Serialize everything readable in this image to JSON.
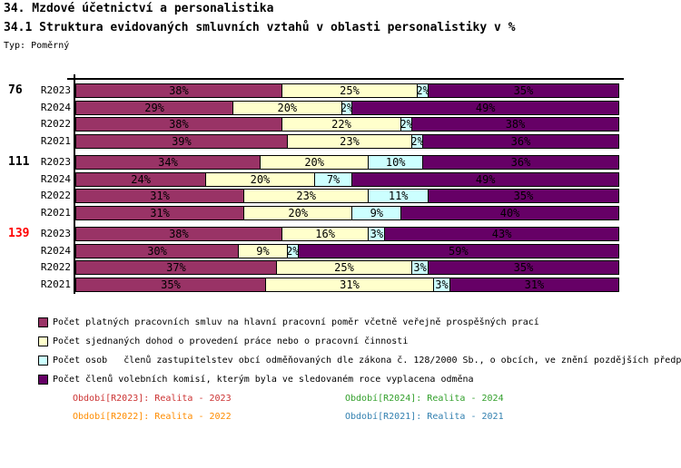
{
  "header": {
    "title": "34. Mzdové účetnictví a personalistika",
    "subtitle": "34.1 Struktura evidovaných smluvních vztahů v oblasti personalistiky v %",
    "type_label": "Typ: Poměrný"
  },
  "chart_data": {
    "type": "bar",
    "stacked": true,
    "orientation": "horizontal",
    "unit": "%",
    "xlim": [
      0,
      100
    ],
    "grid": false,
    "segment_colors": [
      "#993366",
      "#FFFFCC",
      "#CCFFFF",
      "#660066"
    ],
    "series_labels": [
      "Počet platných pracovních smluv na hlavní pracovní poměr včetně veřejně prospěšných prací",
      "Počet sjednaných dohod o provedení práce nebo o pracovní činnosti",
      "Počet osob   členů zastupitelstev obcí odměňovaných dle zákona č. 128/2000 Sb., o obcích, ve znění pozdějších předp",
      "Počet členů volebních komisí, kterým byla ve sledovaném roce vyplacena odměna"
    ],
    "groups": [
      {
        "label": "76",
        "label_color": "#000000",
        "rows": [
          {
            "period": "R2023",
            "values": [
              38,
              25,
              2,
              35
            ]
          },
          {
            "period": "R2024",
            "values": [
              29,
              20,
              2,
              49
            ]
          },
          {
            "period": "R2022",
            "values": [
              38,
              22,
              2,
              38
            ]
          },
          {
            "period": "R2021",
            "values": [
              39,
              23,
              2,
              36
            ]
          }
        ]
      },
      {
        "label": "111",
        "label_color": "#000000",
        "rows": [
          {
            "period": "R2023",
            "values": [
              34,
              20,
              10,
              36
            ]
          },
          {
            "period": "R2024",
            "values": [
              24,
              20,
              7,
              49
            ]
          },
          {
            "period": "R2022",
            "values": [
              31,
              23,
              11,
              35
            ]
          },
          {
            "period": "R2021",
            "values": [
              31,
              20,
              9,
              40
            ]
          }
        ]
      },
      {
        "label": "139",
        "label_color": "#ff0000",
        "rows": [
          {
            "period": "R2023",
            "values": [
              38,
              16,
              3,
              43
            ]
          },
          {
            "period": "R2024",
            "values": [
              30,
              9,
              2,
              59
            ]
          },
          {
            "period": "R2022",
            "values": [
              37,
              25,
              3,
              35
            ]
          },
          {
            "period": "R2021",
            "values": [
              35,
              31,
              3,
              31
            ]
          }
        ]
      }
    ]
  },
  "legend": {
    "items": [
      {
        "color": "#993366",
        "text": "Počet platných pracovních smluv na hlavní pracovní poměr včetně veřejně prospěšných prací"
      },
      {
        "color": "#FFFFCC",
        "text": "Počet sjednaných dohod o provedení práce nebo o pracovní činnosti"
      },
      {
        "color": "#CCFFFF",
        "text": "Počet osob   členů zastupitelstev obcí odměňovaných dle zákona č. 128/2000 Sb., o obcích, ve znění pozdějších předp"
      },
      {
        "color": "#660066",
        "text": "Počet členů volebních komisí, kterým byla ve sledovaném roce vyplacena odměna"
      }
    ]
  },
  "footnotes": [
    {
      "text": "Období[R2023]: Realita - 2023",
      "color": "#cc3333"
    },
    {
      "text": "Období[R2024]: Realita - 2024",
      "color": "#33a02c"
    },
    {
      "text": "Období[R2022]: Realita - 2022",
      "color": "#ff8c00"
    },
    {
      "text": "Období[R2021]: Realita - 2021",
      "color": "#3381b0"
    }
  ]
}
